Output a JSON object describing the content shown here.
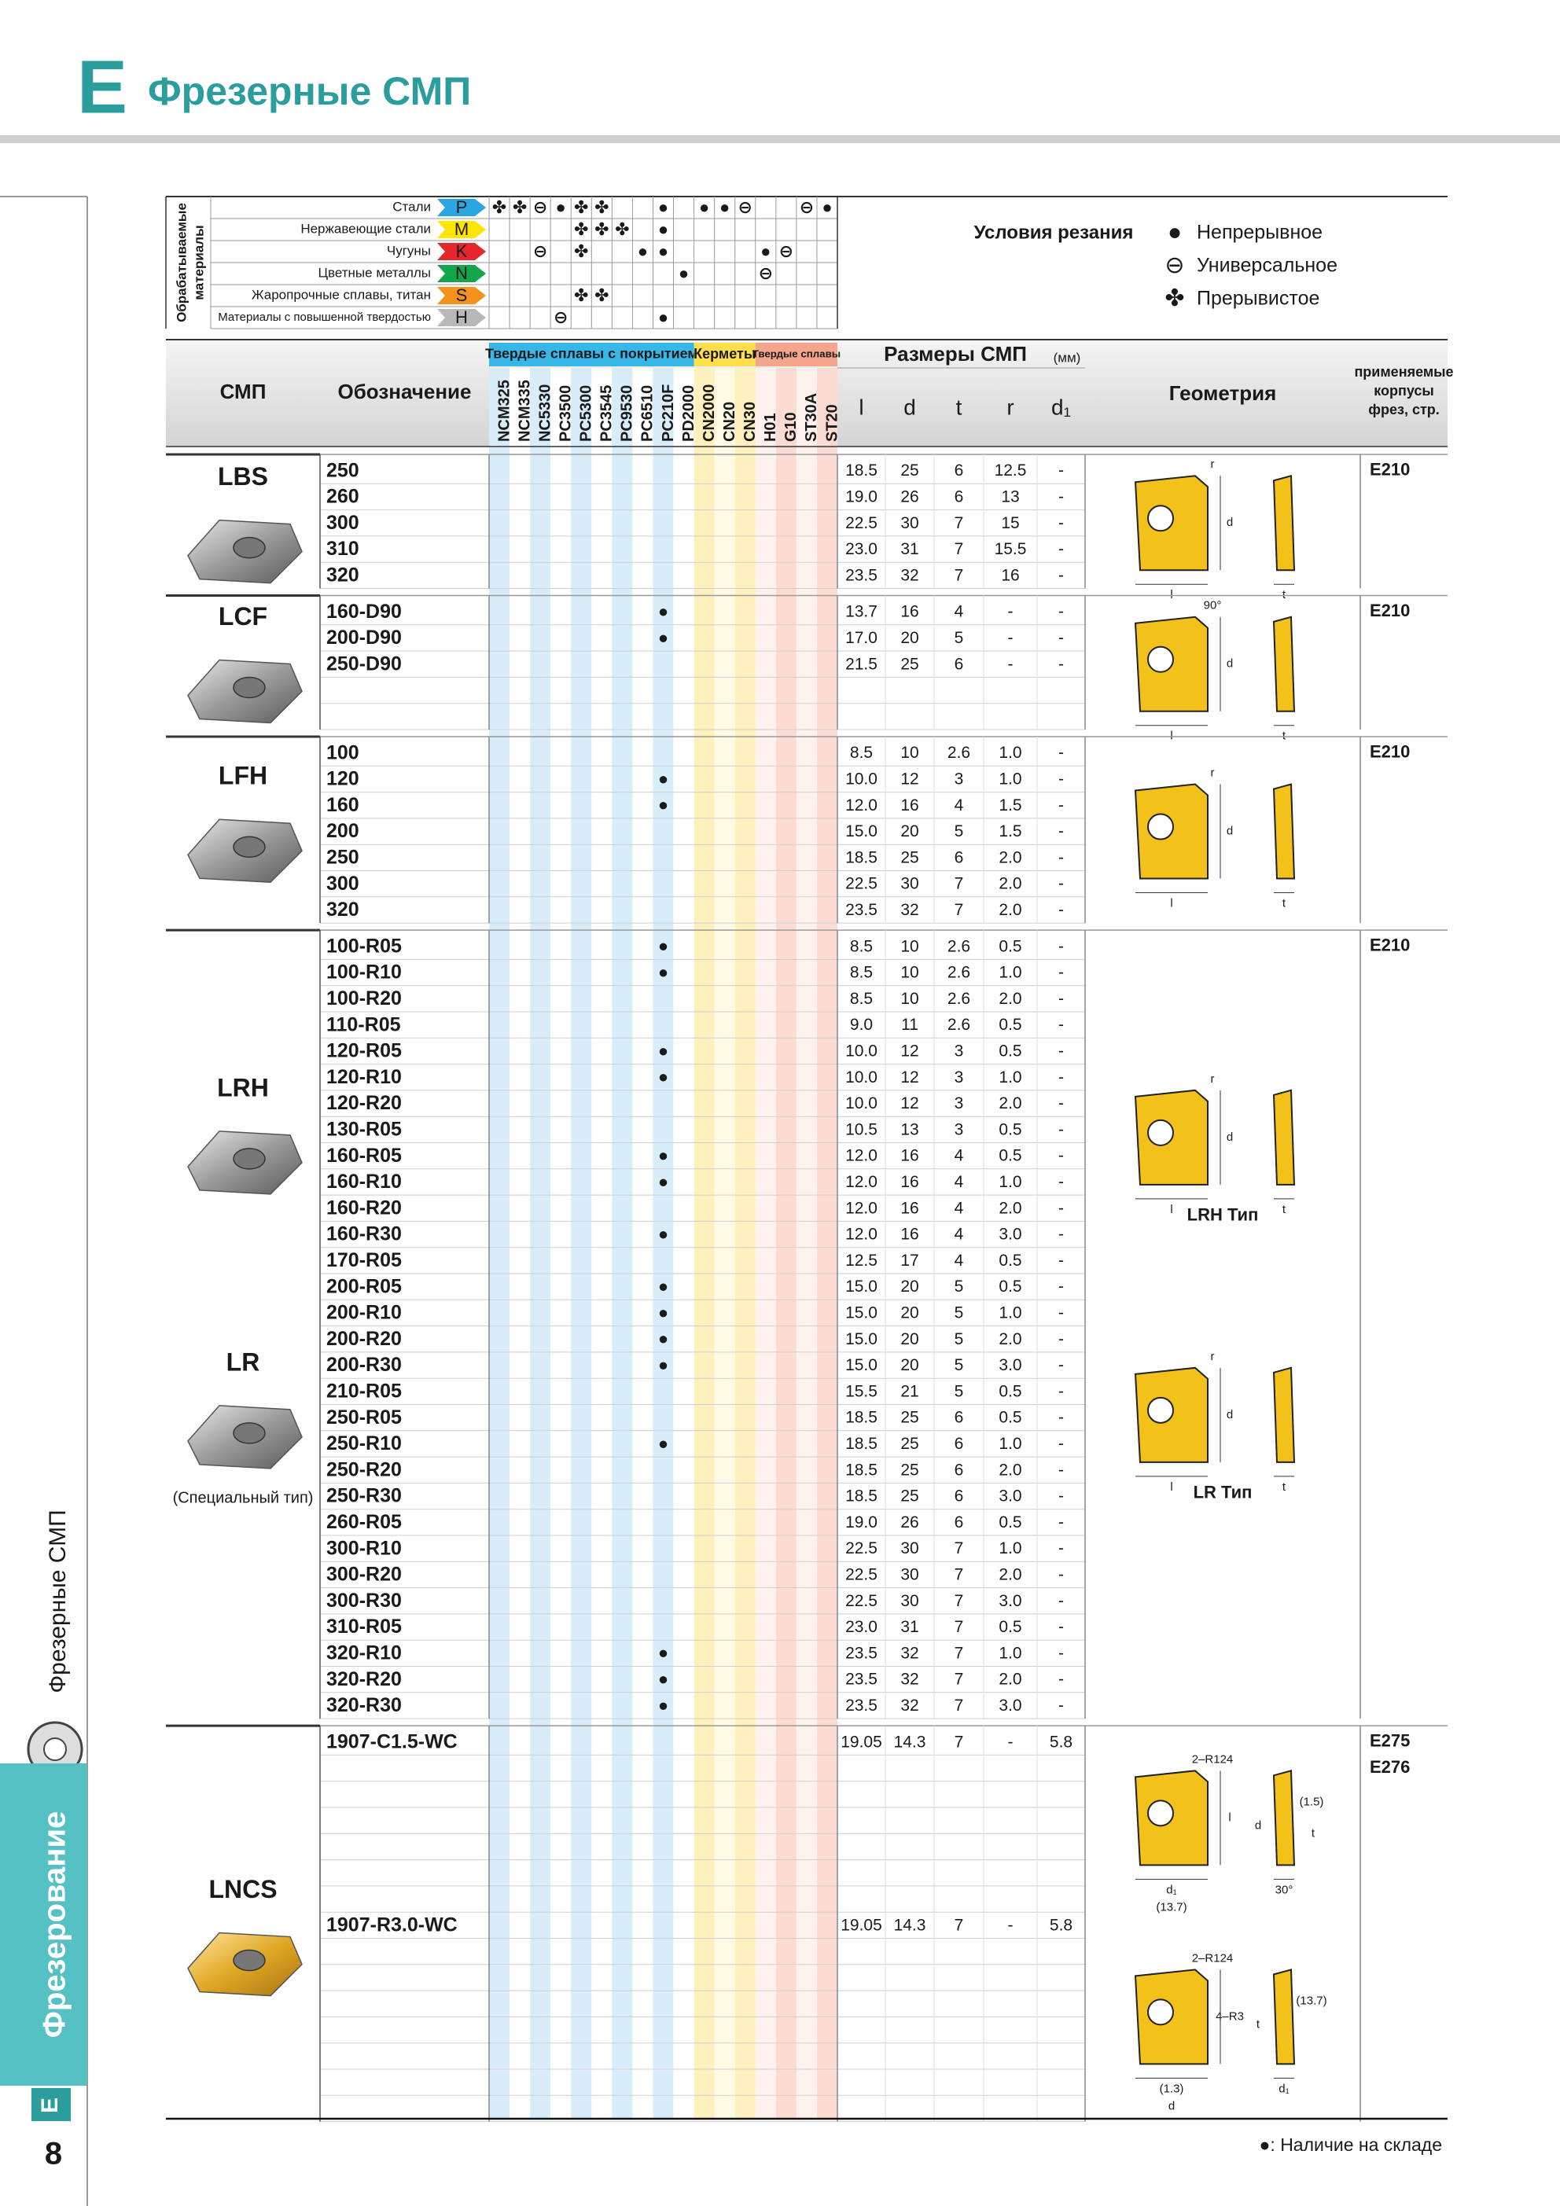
{
  "header": {
    "letter": "E",
    "title": "Фрезерные СМП"
  },
  "sidebar": {
    "section": "Фрезерные СМП",
    "tab": "Фрезерование",
    "tab_letter": "E",
    "page": "8"
  },
  "materials": {
    "axis_label": [
      "Обрабатываемые",
      "материалы"
    ],
    "rows": [
      {
        "name": "Стали",
        "code": "P",
        "color": "#2aa7e1",
        "marks": {
          "NCM325": "✤",
          "NCM335": "✤",
          "NC5330": "⊖",
          "PC3500": "●",
          "PC5300": "✤",
          "PC3545": "✤",
          "PC210F": "●",
          "CN2000": "●",
          "CN20": "●",
          "CN30": "⊖",
          "ST30A": "⊖",
          "ST20": "●"
        }
      },
      {
        "name": "Нержавеющие стали",
        "code": "M",
        "color": "#ffe500",
        "marks": {
          "PC5300": "✤",
          "PC3545": "✤",
          "PC9530": "✤",
          "PC210F": "●"
        }
      },
      {
        "name": "Чугуны",
        "code": "K",
        "color": "#e5262d",
        "marks": {
          "NC5330": "⊖",
          "PC5300": "✤",
          "PC6510": "●",
          "PC210F": "●",
          "H01": "●",
          "G10": "⊖"
        }
      },
      {
        "name": "Цветные металлы",
        "code": "N",
        "color": "#12a54a",
        "marks": {
          "PD2000": "●",
          "H01": "⊖"
        }
      },
      {
        "name": "Жаропрочные сплавы, титан",
        "code": "S",
        "color": "#f5921e",
        "marks": {
          "PC5300": "✤",
          "PC3545": "✤"
        }
      },
      {
        "name": "Материалы с повышенной твердостью",
        "code": "H",
        "color": "#b8b8b8",
        "marks": {
          "PC3500": "⊖",
          "PC210F": "●"
        }
      }
    ],
    "conditions_title": "Условия резания",
    "conditions": [
      {
        "symbol": "●",
        "label": "Непрерывное"
      },
      {
        "symbol": "⊖",
        "label": "Универсальное"
      },
      {
        "symbol": "✤",
        "label": "Прерывистое"
      }
    ]
  },
  "table": {
    "headers": {
      "insert": "СМП",
      "designation": "Обозначение",
      "dimensions": "Размеры СМП",
      "unit": "(мм)",
      "geometry": "Геометрия",
      "holders": [
        "применяемые",
        "корпусы",
        "фрез, стр."
      ]
    },
    "grade_groups": [
      {
        "name": "Твердые сплавы с покрытием",
        "color": "#36b7e8",
        "grades": [
          "NCM325",
          "NCM335",
          "NC5330",
          "PC3500",
          "PC5300",
          "PC3545",
          "PC9530",
          "PC6510",
          "PC210F",
          "PD2000"
        ]
      },
      {
        "name": "Керметы",
        "color": "#ffdf4a",
        "grades": [
          "CN2000",
          "CN20",
          "CN30"
        ]
      },
      {
        "name": "Твердые сплавы",
        "color": "#f4a58c",
        "grades": [
          "H01",
          "G10",
          "ST30A",
          "ST20"
        ]
      }
    ],
    "dimension_columns": [
      "l",
      "d",
      "t",
      "r",
      "d₁"
    ],
    "blocks": [
      {
        "names": [
          {
            "name": "LBS"
          }
        ],
        "holders": [
          "E210"
        ],
        "geometry": [
          {
            "labels": [
              "r",
              "d",
              "l",
              "t"
            ]
          }
        ],
        "rows": [
          {
            "code": "250",
            "dims": [
              "18.5",
              "25",
              "6",
              "12.5",
              "-"
            ]
          },
          {
            "code": "260",
            "dims": [
              "19.0",
              "26",
              "6",
              "13",
              "-"
            ]
          },
          {
            "code": "300",
            "dims": [
              "22.5",
              "30",
              "7",
              "15",
              "-"
            ]
          },
          {
            "code": "310",
            "dims": [
              "23.0",
              "31",
              "7",
              "15.5",
              "-"
            ]
          },
          {
            "code": "320",
            "dims": [
              "23.5",
              "32",
              "7",
              "16",
              "-"
            ]
          }
        ]
      },
      {
        "names": [
          {
            "name": "LCF"
          }
        ],
        "holders": [
          "E210"
        ],
        "geometry": [
          {
            "labels": [
              "90°",
              "d",
              "l",
              "t"
            ]
          }
        ],
        "rows": [
          {
            "code": "160-D90",
            "stock": {
              "PC210F": "●"
            },
            "dims": [
              "13.7",
              "16",
              "4",
              "-",
              "-"
            ]
          },
          {
            "code": "200-D90",
            "stock": {
              "PC210F": "●"
            },
            "dims": [
              "17.0",
              "20",
              "5",
              "-",
              "-"
            ]
          },
          {
            "code": "250-D90",
            "dims": [
              "21.5",
              "25",
              "6",
              "-",
              "-"
            ]
          }
        ]
      },
      {
        "names": [
          {
            "name": "LFH"
          }
        ],
        "holders": [
          "E210"
        ],
        "geometry": [
          {
            "labels": [
              "r",
              "d",
              "l",
              "t"
            ]
          }
        ],
        "rows": [
          {
            "code": "100",
            "dims": [
              "8.5",
              "10",
              "2.6",
              "1.0",
              "-"
            ]
          },
          {
            "code": "120",
            "stock": {
              "PC210F": "●"
            },
            "dims": [
              "10.0",
              "12",
              "3",
              "1.0",
              "-"
            ]
          },
          {
            "code": "160",
            "stock": {
              "PC210F": "●"
            },
            "dims": [
              "12.0",
              "16",
              "4",
              "1.5",
              "-"
            ]
          },
          {
            "code": "200",
            "dims": [
              "15.0",
              "20",
              "5",
              "1.5",
              "-"
            ]
          },
          {
            "code": "250",
            "dims": [
              "18.5",
              "25",
              "6",
              "2.0",
              "-"
            ]
          },
          {
            "code": "300",
            "dims": [
              "22.5",
              "30",
              "7",
              "2.0",
              "-"
            ]
          },
          {
            "code": "320",
            "dims": [
              "23.5",
              "32",
              "7",
              "2.0",
              "-"
            ]
          }
        ]
      },
      {
        "names": [
          {
            "name": "LRH"
          },
          {
            "name": "LR",
            "note": "(Специальный тип)"
          }
        ],
        "holders": [
          "E210"
        ],
        "geometry": [
          {
            "caption": "LRH Тип",
            "labels": [
              "r",
              "d",
              "l",
              "t"
            ]
          },
          {
            "caption": "LR Тип",
            "labels": [
              "r",
              "d",
              "l",
              "t"
            ]
          }
        ],
        "rows": [
          {
            "code": "100-R05",
            "stock": {
              "PC210F": "●"
            },
            "dims": [
              "8.5",
              "10",
              "2.6",
              "0.5",
              "-"
            ]
          },
          {
            "code": "100-R10",
            "stock": {
              "PC210F": "●"
            },
            "dims": [
              "8.5",
              "10",
              "2.6",
              "1.0",
              "-"
            ]
          },
          {
            "code": "100-R20",
            "dims": [
              "8.5",
              "10",
              "2.6",
              "2.0",
              "-"
            ]
          },
          {
            "code": "110-R05",
            "dims": [
              "9.0",
              "11",
              "2.6",
              "0.5",
              "-"
            ]
          },
          {
            "code": "120-R05",
            "stock": {
              "PC210F": "●"
            },
            "dims": [
              "10.0",
              "12",
              "3",
              "0.5",
              "-"
            ]
          },
          {
            "code": "120-R10",
            "stock": {
              "PC210F": "●"
            },
            "dims": [
              "10.0",
              "12",
              "3",
              "1.0",
              "-"
            ]
          },
          {
            "code": "120-R20",
            "dims": [
              "10.0",
              "12",
              "3",
              "2.0",
              "-"
            ]
          },
          {
            "code": "130-R05",
            "dims": [
              "10.5",
              "13",
              "3",
              "0.5",
              "-"
            ]
          },
          {
            "code": "160-R05",
            "stock": {
              "PC210F": "●"
            },
            "dims": [
              "12.0",
              "16",
              "4",
              "0.5",
              "-"
            ]
          },
          {
            "code": "160-R10",
            "stock": {
              "PC210F": "●"
            },
            "dims": [
              "12.0",
              "16",
              "4",
              "1.0",
              "-"
            ]
          },
          {
            "code": "160-R20",
            "dims": [
              "12.0",
              "16",
              "4",
              "2.0",
              "-"
            ]
          },
          {
            "code": "160-R30",
            "stock": {
              "PC210F": "●"
            },
            "dims": [
              "12.0",
              "16",
              "4",
              "3.0",
              "-"
            ]
          },
          {
            "code": "170-R05",
            "dims": [
              "12.5",
              "17",
              "4",
              "0.5",
              "-"
            ]
          },
          {
            "code": "200-R05",
            "stock": {
              "PC210F": "●"
            },
            "dims": [
              "15.0",
              "20",
              "5",
              "0.5",
              "-"
            ]
          },
          {
            "code": "200-R10",
            "stock": {
              "PC210F": "●"
            },
            "dims": [
              "15.0",
              "20",
              "5",
              "1.0",
              "-"
            ]
          },
          {
            "code": "200-R20",
            "stock": {
              "PC210F": "●"
            },
            "dims": [
              "15.0",
              "20",
              "5",
              "2.0",
              "-"
            ]
          },
          {
            "code": "200-R30",
            "stock": {
              "PC210F": "●"
            },
            "dims": [
              "15.0",
              "20",
              "5",
              "3.0",
              "-"
            ]
          },
          {
            "code": "210-R05",
            "dims": [
              "15.5",
              "21",
              "5",
              "0.5",
              "-"
            ]
          },
          {
            "code": "250-R05",
            "dims": [
              "18.5",
              "25",
              "6",
              "0.5",
              "-"
            ]
          },
          {
            "code": "250-R10",
            "stock": {
              "PC210F": "●"
            },
            "dims": [
              "18.5",
              "25",
              "6",
              "1.0",
              "-"
            ]
          },
          {
            "code": "250-R20",
            "dims": [
              "18.5",
              "25",
              "6",
              "2.0",
              "-"
            ]
          },
          {
            "code": "250-R30",
            "dims": [
              "18.5",
              "25",
              "6",
              "3.0",
              "-"
            ]
          },
          {
            "code": "260-R05",
            "dims": [
              "19.0",
              "26",
              "6",
              "0.5",
              "-"
            ]
          },
          {
            "code": "300-R10",
            "dims": [
              "22.5",
              "30",
              "7",
              "1.0",
              "-"
            ]
          },
          {
            "code": "300-R20",
            "dims": [
              "22.5",
              "30",
              "7",
              "2.0",
              "-"
            ]
          },
          {
            "code": "300-R30",
            "dims": [
              "22.5",
              "30",
              "7",
              "3.0",
              "-"
            ]
          },
          {
            "code": "310-R05",
            "dims": [
              "23.0",
              "31",
              "7",
              "0.5",
              "-"
            ]
          },
          {
            "code": "320-R10",
            "stock": {
              "PC210F": "●"
            },
            "dims": [
              "23.5",
              "32",
              "7",
              "1.0",
              "-"
            ]
          },
          {
            "code": "320-R20",
            "stock": {
              "PC210F": "●"
            },
            "dims": [
              "23.5",
              "32",
              "7",
              "2.0",
              "-"
            ]
          },
          {
            "code": "320-R30",
            "stock": {
              "PC210F": "●"
            },
            "dims": [
              "23.5",
              "32",
              "7",
              "3.0",
              "-"
            ]
          }
        ]
      },
      {
        "names": [
          {
            "name": "LNCS"
          }
        ],
        "holders": [
          "E275",
          "E276"
        ],
        "geometry": [
          {
            "labels": [
              "2–R124",
              "l",
              "d₁",
              "30°",
              "(1.5)",
              "(13.7)",
              "d",
              "t"
            ]
          },
          {
            "labels": [
              "2–R124",
              "4–R3",
              "(1.3)",
              "d₁",
              "(13.7)",
              "d",
              "t"
            ]
          }
        ],
        "rows": [
          {
            "code": "1907-C1.5-WC",
            "dims": [
              "19.05",
              "14.3",
              "7",
              "-",
              "5.8"
            ]
          },
          {
            "code": "1907-R3.0-WC",
            "dims": [
              "19.05",
              "14.3",
              "7",
              "-",
              "5.8"
            ]
          }
        ]
      }
    ]
  },
  "footnote": "●: Наличие на складе"
}
